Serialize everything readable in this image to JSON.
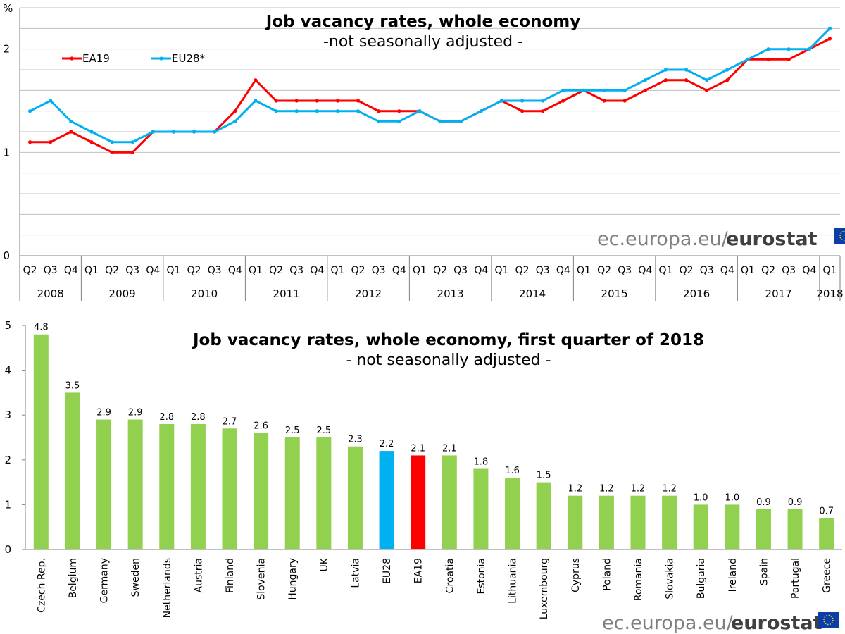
{
  "source": {
    "domain": "ec.europa.eu/",
    "brand": "eurostat"
  },
  "colors": {
    "ea19": "#ff0000",
    "eu28": "#00b0f0",
    "bars": "#92d050",
    "grid": "#c0c0c0"
  },
  "chart_data": [
    {
      "type": "line",
      "title": "Job vacancy rates, whole economy",
      "subtitle": "-not  seasonally adjusted -",
      "ylabel": "%",
      "ylim": [
        0,
        2.4
      ],
      "yticks": [
        0,
        1,
        2
      ],
      "grid": true,
      "legend_position": "top-left",
      "quarters": [
        "Q2",
        "Q3",
        "Q4",
        "Q1",
        "Q2",
        "Q3",
        "Q4",
        "Q1",
        "Q2",
        "Q3",
        "Q4",
        "Q1",
        "Q2",
        "Q3",
        "Q4",
        "Q1",
        "Q2",
        "Q3",
        "Q4",
        "Q1",
        "Q2",
        "Q3",
        "Q4",
        "Q1",
        "Q2",
        "Q3",
        "Q4",
        "Q1",
        "Q2",
        "Q3",
        "Q4",
        "Q1",
        "Q2",
        "Q3",
        "Q4",
        "Q1",
        "Q2",
        "Q3",
        "Q4",
        "Q1"
      ],
      "years": [
        {
          "label": "2008",
          "quarters": 3
        },
        {
          "label": "2009",
          "quarters": 4
        },
        {
          "label": "2010",
          "quarters": 4
        },
        {
          "label": "2011",
          "quarters": 4
        },
        {
          "label": "2012",
          "quarters": 4
        },
        {
          "label": "2013",
          "quarters": 4
        },
        {
          "label": "2014",
          "quarters": 4
        },
        {
          "label": "2015",
          "quarters": 4
        },
        {
          "label": "2016",
          "quarters": 4
        },
        {
          "label": "2017",
          "quarters": 4
        },
        {
          "label": "2018",
          "quarters": 1
        }
      ],
      "series": [
        {
          "name": "EA19",
          "color": "#ff0000",
          "values": [
            1.1,
            1.1,
            1.2,
            1.1,
            1.0,
            1.0,
            1.2,
            1.2,
            1.2,
            1.2,
            1.4,
            1.7,
            1.5,
            1.5,
            1.5,
            1.5,
            1.5,
            1.4,
            1.4,
            1.4,
            1.3,
            1.3,
            1.4,
            1.5,
            1.4,
            1.4,
            1.5,
            1.6,
            1.5,
            1.5,
            1.6,
            1.7,
            1.7,
            1.6,
            1.7,
            1.9,
            1.9,
            1.9,
            2.0,
            2.1
          ]
        },
        {
          "name": "EU28*",
          "color": "#00b0f0",
          "values": [
            1.4,
            1.5,
            1.3,
            1.2,
            1.1,
            1.1,
            1.2,
            1.2,
            1.2,
            1.2,
            1.3,
            1.5,
            1.4,
            1.4,
            1.4,
            1.4,
            1.4,
            1.3,
            1.3,
            1.4,
            1.3,
            1.3,
            1.4,
            1.5,
            1.5,
            1.5,
            1.6,
            1.6,
            1.6,
            1.6,
            1.7,
            1.8,
            1.8,
            1.7,
            1.8,
            1.9,
            2.0,
            2.0,
            2.0,
            2.2
          ]
        }
      ]
    },
    {
      "type": "bar",
      "title": "Job vacancy rates, whole economy, first quarter of 2018",
      "subtitle": "- not seasonally adjusted -",
      "ylim": [
        0,
        5
      ],
      "yticks": [
        0,
        1,
        2,
        3,
        4,
        5
      ],
      "grid": false,
      "categories": [
        "Czech Rep.",
        "Belgium",
        "Germany",
        "Sweden",
        "Netherlands",
        "Austria",
        "Finland",
        "Slovenia",
        "Hungary",
        "UK",
        "Latvia",
        "EU28",
        "EA19",
        "Croatia",
        "Estonia",
        "Lithuania",
        "Luxembourg",
        "Cyprus",
        "Poland",
        "Romania",
        "Slovakia",
        "Bulgaria",
        "Ireland",
        "Spain",
        "Portugal",
        "Greece"
      ],
      "values": [
        4.8,
        3.5,
        2.9,
        2.9,
        2.8,
        2.8,
        2.7,
        2.6,
        2.5,
        2.5,
        2.3,
        2.2,
        2.1,
        2.1,
        1.8,
        1.6,
        1.5,
        1.2,
        1.2,
        1.2,
        1.2,
        1.0,
        1.0,
        0.9,
        0.9,
        0.7
      ],
      "labels": [
        "4.8",
        "3.5",
        "2.9",
        "2.9",
        "2.8",
        "2.8",
        "2.7",
        "2.6",
        "2.5",
        "2.5",
        "2.3",
        "2.2",
        "2.1",
        "2.1",
        "1.8",
        "1.6",
        "1.5",
        "1.2",
        "1.2",
        "1.2",
        "1.2",
        "1.0",
        "1.0",
        "0.9",
        "0.9",
        "0.7"
      ],
      "highlight": {
        "EU28": "#00b0f0",
        "EA19": "#ff0000"
      }
    }
  ]
}
